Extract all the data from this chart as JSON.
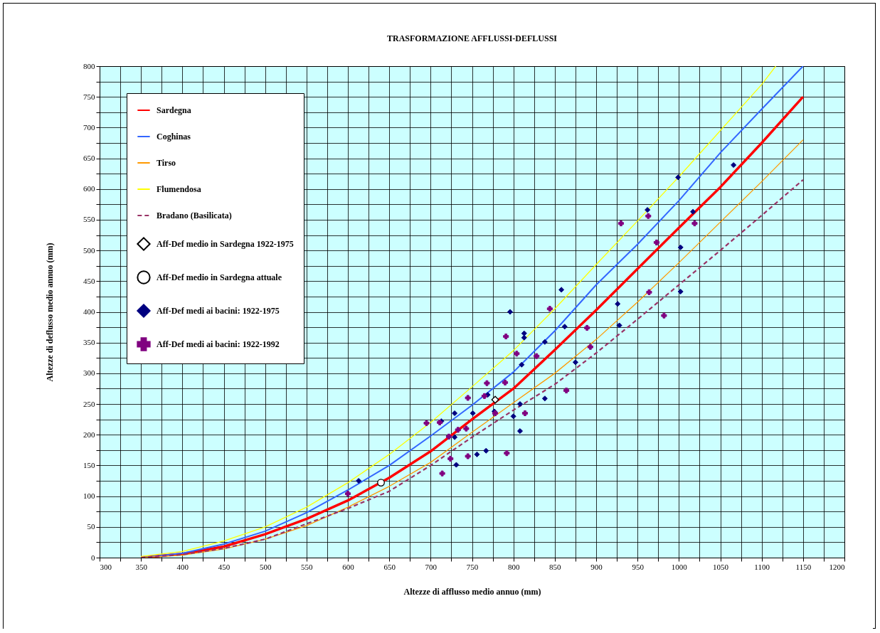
{
  "chart_data": {
    "type": "line",
    "title": "TRASFORMAZIONE AFFLUSSI-DEFLUSSI",
    "xlabel": "Altezze di afflusso medio annuo (mm)",
    "ylabel": "Altezze di deflusso medio annuo (mm)",
    "x": [
      350,
      400,
      450,
      500,
      550,
      600,
      650,
      700,
      750,
      800,
      850,
      900,
      950,
      1000,
      1050,
      1100,
      1150
    ],
    "series": [
      {
        "name": "Sardegna",
        "color": "#ff0000",
        "marker": "none",
        "line_style": "solid",
        "values": [
          0,
          6,
          18,
          38,
          63,
          93,
          130,
          173,
          225,
          275,
          338,
          403,
          470,
          537,
          603,
          675,
          750
        ]
      },
      {
        "name": "Coghinas",
        "color": "#3366ff",
        "marker": "none",
        "line_style": "solid",
        "values": [
          0,
          7,
          22,
          43,
          73,
          110,
          150,
          198,
          248,
          302,
          369,
          444,
          510,
          581,
          659,
          730,
          800
        ]
      },
      {
        "name": "Tirso",
        "color": "#ff9900",
        "marker": "none",
        "line_style": "solid",
        "values": [
          0,
          4,
          14,
          30,
          52,
          82,
          116,
          155,
          204,
          252,
          300,
          355,
          416,
          480,
          546,
          612,
          680
        ]
      },
      {
        "name": "Flumendosa",
        "color": "#ffff00",
        "marker": "none",
        "line_style": "solid",
        "x": [
          350,
          400,
          450,
          500,
          550,
          600,
          650,
          700,
          750,
          800,
          850,
          900,
          950,
          1000,
          1050,
          1100,
          1117
        ],
        "values": [
          2,
          10,
          27,
          50,
          82,
          122,
          168,
          220,
          278,
          337,
          405,
          477,
          548,
          620,
          695,
          770,
          800
        ]
      },
      {
        "name": "Bradano (Basilicata)",
        "color": "#993366",
        "marker": "none",
        "line_style": "dashed",
        "values": [
          0,
          5,
          15,
          30,
          55,
          80,
          108,
          150,
          196,
          240,
          282,
          333,
          388,
          444,
          500,
          557,
          615
        ]
      },
      {
        "name": "Aff-Def medio in Sardegna 1922-1975",
        "type": "scatter",
        "color": "#000000",
        "marker": "diamond",
        "x": [
          778
        ],
        "values": [
          257
        ]
      },
      {
        "name": "Aff-Def medio in Sardegna attuale",
        "type": "scatter",
        "color": "#000000",
        "marker": "circle",
        "x": [
          640
        ],
        "values": [
          122
        ]
      },
      {
        "name": "Aff-Def medi ai bacini: 1922-1975",
        "type": "scatter",
        "color": "#000080",
        "marker": "diamond",
        "x": [
          613,
          838,
          810,
          875,
          769,
          838,
          729,
          751,
          713,
          777,
          808,
          800,
          808,
          729,
          756,
          767,
          731,
          858,
          862,
          926,
          928,
          1002,
          999,
          962,
          1017,
          1066,
          1002,
          813,
          813,
          796
        ],
        "values": [
          125,
          351,
          314,
          318,
          265,
          259,
          235,
          235,
          222,
          238,
          250,
          230,
          206,
          196,
          168,
          174,
          151,
          436,
          376,
          413,
          378,
          433,
          619,
          566,
          563,
          639,
          505,
          365,
          358,
          400
        ]
      },
      {
        "name": "Aff-Def medi ai bacini: 1922-1992",
        "type": "scatter",
        "color": "#800080",
        "marker": "cross",
        "x": [
          600,
          804,
          828,
          768,
          790,
          745,
          765,
          864,
          695,
          711,
          778,
          814,
          733,
          743,
          722,
          724,
          745,
          792,
          714,
          964,
          982,
          889,
          893,
          930,
          963,
          1019,
          973,
          844,
          791
        ],
        "values": [
          104,
          332,
          328,
          284,
          285,
          260,
          263,
          272,
          219,
          220,
          235,
          235,
          208,
          210,
          197,
          161,
          165,
          170,
          137,
          432,
          394,
          374,
          343,
          544,
          556,
          544,
          513,
          405,
          360
        ]
      }
    ],
    "xlim": [
      300,
      1200
    ],
    "xticks": [
      300,
      {
        "value": 325,
        "label": null
      },
      350,
      {
        "value": 375,
        "label": null
      },
      400,
      {
        "value": 425,
        "label": null
      },
      450,
      {
        "value": 475,
        "label": null
      },
      500,
      {
        "value": 525,
        "label": null
      },
      550,
      {
        "value": 575,
        "label": null
      },
      600,
      {
        "value": 625,
        "label": null
      },
      650,
      {
        "value": 675,
        "label": null
      },
      700,
      {
        "value": 725,
        "label": null
      },
      750,
      {
        "value": 775,
        "label": null
      },
      800,
      {
        "value": 825,
        "label": null
      },
      850,
      {
        "value": 875,
        "label": null
      },
      900,
      {
        "value": 925,
        "label": null
      },
      950,
      {
        "value": 975,
        "label": null
      },
      1000,
      {
        "value": 1025,
        "label": null
      },
      1050,
      {
        "value": 1075,
        "label": null
      },
      1100,
      {
        "value": 1125,
        "label": null
      },
      1150,
      {
        "value": 1175,
        "label": null
      },
      1200
    ],
    "ylim": [
      0,
      800
    ],
    "yticks": [
      0,
      {
        "value": 25,
        "label": null
      },
      50,
      {
        "value": 75,
        "label": null
      },
      100,
      {
        "value": 125,
        "label": null
      },
      150,
      {
        "value": 175,
        "label": null
      },
      200,
      {
        "value": 225,
        "label": null
      },
      250,
      {
        "value": 275,
        "label": null
      },
      300,
      {
        "value": 325,
        "label": null
      },
      350,
      {
        "value": 375,
        "label": null
      },
      400,
      {
        "value": 425,
        "label": null
      },
      450,
      {
        "value": 475,
        "label": null
      },
      500,
      {
        "value": 525,
        "label": null
      },
      550,
      {
        "value": 575,
        "label": null
      },
      600,
      {
        "value": 625,
        "label": null
      },
      650,
      {
        "value": 675,
        "label": null
      },
      700,
      {
        "value": 725,
        "label": null
      },
      750,
      {
        "value": 775,
        "label": null
      },
      800
    ],
    "grid": true,
    "legend": "top left"
  }
}
